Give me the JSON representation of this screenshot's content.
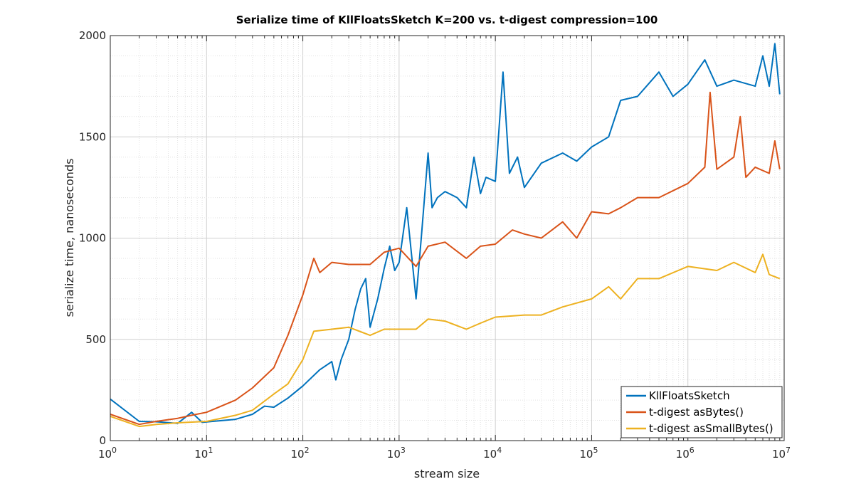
{
  "chart_data": {
    "type": "line",
    "title": "Serialize time of KllFloatsSketch K=200 vs. t-digest compression=100",
    "xlabel": "stream size",
    "ylabel": "serialize time, nanoseconds",
    "xscale": "log",
    "xlim": [
      1,
      10000000
    ],
    "ylim": [
      0,
      2000
    ],
    "xticks": [
      "0",
      "1",
      "2",
      "3",
      "4",
      "5",
      "6",
      "7"
    ],
    "xtick_base": "10",
    "yticks": [
      "0",
      "500",
      "1000",
      "1500",
      "2000"
    ],
    "grid": true,
    "legend_position": "bottom-right",
    "series": [
      {
        "name": "KllFloatsSketch",
        "color": "#0072BD",
        "x": [
          1,
          2,
          3,
          5,
          7,
          9,
          10,
          20,
          30,
          40,
          50,
          70,
          100,
          150,
          200,
          220,
          250,
          300,
          350,
          400,
          450,
          500,
          600,
          700,
          800,
          900,
          1000,
          1200,
          1500,
          1700,
          2000,
          2200,
          2500,
          3000,
          4000,
          5000,
          6000,
          7000,
          8000,
          10000,
          12000,
          14000,
          17000,
          20000,
          30000,
          50000,
          70000,
          100000,
          150000,
          200000,
          300000,
          500000,
          700000,
          1000000,
          1500000,
          2000000,
          3000000,
          5000000,
          6000000,
          7000000,
          8000000,
          9000000
        ],
        "y": [
          205,
          95,
          93,
          85,
          140,
          90,
          92,
          105,
          130,
          170,
          165,
          210,
          270,
          350,
          390,
          300,
          400,
          500,
          650,
          750,
          800,
          560,
          700,
          850,
          960,
          840,
          880,
          1150,
          700,
          1000,
          1420,
          1150,
          1200,
          1230,
          1200,
          1150,
          1400,
          1220,
          1300,
          1280,
          1820,
          1320,
          1400,
          1250,
          1370,
          1420,
          1380,
          1450,
          1500,
          1680,
          1700,
          1820,
          1700,
          1760,
          1880,
          1750,
          1780,
          1750,
          1900,
          1750,
          1960,
          1710
        ]
      },
      {
        "name": "t-digest asBytes()",
        "color": "#D95319",
        "x": [
          1,
          2,
          3,
          5,
          7,
          10,
          20,
          30,
          50,
          70,
          100,
          130,
          150,
          200,
          300,
          500,
          700,
          1000,
          1500,
          2000,
          3000,
          5000,
          7000,
          10000,
          15000,
          20000,
          30000,
          50000,
          70000,
          100000,
          150000,
          200000,
          300000,
          500000,
          1000000,
          1500000,
          1700000,
          2000000,
          3000000,
          3500000,
          4000000,
          5000000,
          7000000,
          8000000,
          9000000
        ],
        "y": [
          130,
          80,
          95,
          110,
          125,
          140,
          200,
          260,
          360,
          520,
          720,
          900,
          830,
          880,
          870,
          870,
          930,
          950,
          860,
          960,
          980,
          900,
          960,
          970,
          1040,
          1020,
          1000,
          1080,
          1000,
          1130,
          1120,
          1150,
          1200,
          1200,
          1270,
          1350,
          1720,
          1340,
          1400,
          1600,
          1300,
          1350,
          1320,
          1480,
          1340
        ]
      },
      {
        "name": "t-digest asSmallBytes()",
        "color": "#EDB120",
        "x": [
          1,
          2,
          3,
          5,
          10,
          20,
          30,
          50,
          70,
          100,
          130,
          200,
          300,
          500,
          700,
          1000,
          1500,
          2000,
          3000,
          5000,
          7000,
          10000,
          20000,
          30000,
          50000,
          100000,
          150000,
          200000,
          300000,
          500000,
          1000000,
          2000000,
          3000000,
          5000000,
          6000000,
          7000000,
          9000000
        ],
        "y": [
          120,
          70,
          80,
          88,
          95,
          125,
          150,
          230,
          280,
          400,
          540,
          550,
          560,
          520,
          550,
          550,
          550,
          600,
          590,
          550,
          580,
          610,
          620,
          620,
          660,
          700,
          760,
          700,
          800,
          800,
          860,
          840,
          880,
          830,
          920,
          820,
          800
        ]
      }
    ]
  }
}
